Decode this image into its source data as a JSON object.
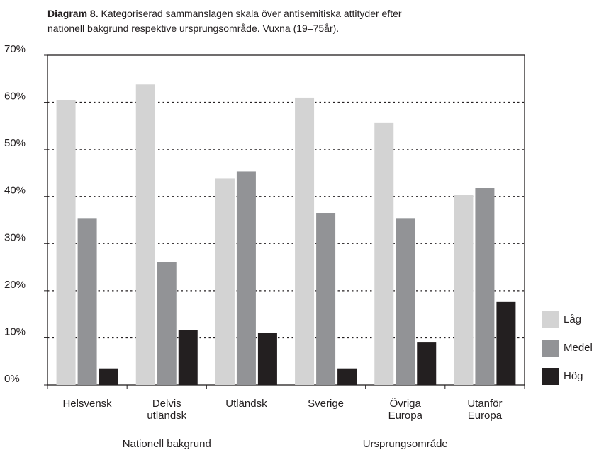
{
  "chart_data": {
    "type": "bar",
    "title_prefix": "Diagram 8.",
    "title": "Kategoriserad sammanslagen skala över antisemitiska attityder efter nationell bakgrund respektive ursprungsområde. Vuxna (19–75år).",
    "categories": [
      "Helsvensk",
      "Delvis utländsk",
      "Utländsk",
      "Sverige",
      "Övriga Europa",
      "Utanför Europa"
    ],
    "groups": [
      "Nationell bakgrund",
      "Ursprungsområde"
    ],
    "series": [
      {
        "name": "Låg",
        "color": "#d3d3d3",
        "values": [
          60.4,
          63.8,
          43.8,
          61,
          55.6,
          40.4
        ]
      },
      {
        "name": "Medel",
        "color": "#929396",
        "values": [
          35.4,
          26.1,
          45.3,
          36.5,
          35.4,
          41.9
        ]
      },
      {
        "name": "Hög",
        "color": "#231f20",
        "values": [
          3.5,
          11.6,
          11.1,
          3.5,
          9,
          17.6
        ]
      }
    ],
    "ylim": [
      0,
      70
    ],
    "yticks": [
      {
        "value": 0,
        "label": "0%"
      },
      {
        "value": 10,
        "label": "10%"
      },
      {
        "value": 20,
        "label": "20%"
      },
      {
        "value": 30,
        "label": "30%"
      },
      {
        "value": 40,
        "label": "40%"
      },
      {
        "value": 50,
        "label": "50%"
      },
      {
        "value": 60,
        "label": "60%"
      },
      {
        "value": 70,
        "label": "70%"
      }
    ],
    "grid": true,
    "legend": "right"
  }
}
